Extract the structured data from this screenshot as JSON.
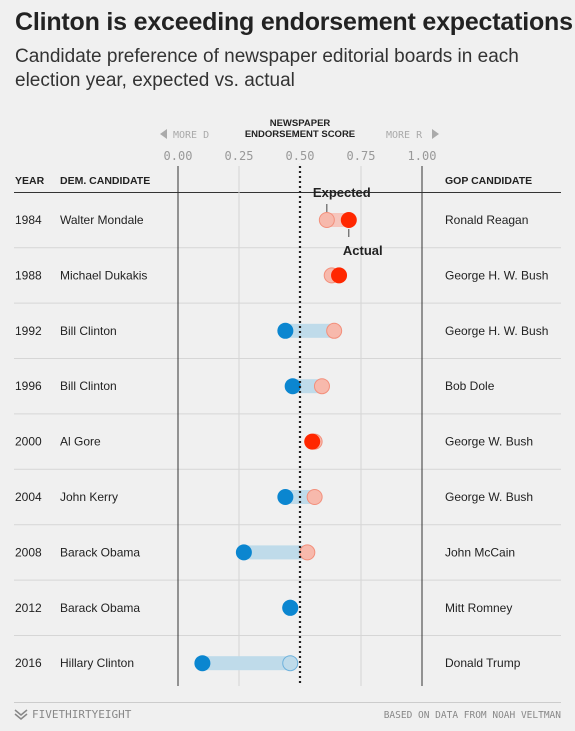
{
  "title": "Clinton is exceeding endorsement expectations",
  "subtitle": "Candidate preference of newspaper editorial boards in each election year, expected vs. actual",
  "footer": {
    "brand": "FIVETHIRTYEIGHT",
    "source": "BASED ON DATA FROM NOAH VELTMAN"
  },
  "colors": {
    "dem": "#0b86d0",
    "dem_light": "#bfdbea",
    "gop": "#ff2700",
    "gop_expected": "#f7b9ac",
    "gop_bar": "#f6c6bd",
    "background": "#f0f0f0"
  },
  "chart_data": {
    "type": "dumbbell",
    "axis_title": [
      "NEWSPAPER",
      "ENDORSEMENT SCORE"
    ],
    "more_d_label": "MORE D",
    "more_r_label": "MORE R",
    "xlim": [
      0,
      1
    ],
    "ticks": [
      0,
      0.25,
      0.5,
      0.75,
      1
    ],
    "tick_labels": [
      "0.00",
      "0.25",
      "0.50",
      "0.75",
      "1.00"
    ],
    "reference_line": 0.5,
    "columns": {
      "year": "YEAR",
      "dem": "DEM. CANDIDATE",
      "gop": "GOP CANDIDATE"
    },
    "annotations": {
      "expected": "Expected",
      "actual": "Actual"
    },
    "rows": [
      {
        "year": "1984",
        "dem": "Walter Mondale",
        "gop": "Ronald Reagan",
        "expected": 0.61,
        "actual": 0.7
      },
      {
        "year": "1988",
        "dem": "Michael Dukakis",
        "gop": "George H. W. Bush",
        "expected": 0.63,
        "actual": 0.66
      },
      {
        "year": "1992",
        "dem": "Bill Clinton",
        "gop": "George H. W. Bush",
        "expected": 0.64,
        "actual": 0.44
      },
      {
        "year": "1996",
        "dem": "Bill Clinton",
        "gop": "Bob Dole",
        "expected": 0.59,
        "actual": 0.47
      },
      {
        "year": "2000",
        "dem": "Al Gore",
        "gop": "George W. Bush",
        "expected": 0.56,
        "actual": 0.55
      },
      {
        "year": "2004",
        "dem": "John Kerry",
        "gop": "George W. Bush",
        "expected": 0.56,
        "actual": 0.44
      },
      {
        "year": "2008",
        "dem": "Barack Obama",
        "gop": "John McCain",
        "expected": 0.53,
        "actual": 0.27
      },
      {
        "year": "2012",
        "dem": "Barack Obama",
        "gop": "Mitt Romney",
        "expected": 0.46,
        "actual": 0.46
      },
      {
        "year": "2016",
        "dem": "Hillary Clinton",
        "gop": "Donald Trump",
        "expected": 0.46,
        "actual": 0.1
      }
    ]
  }
}
